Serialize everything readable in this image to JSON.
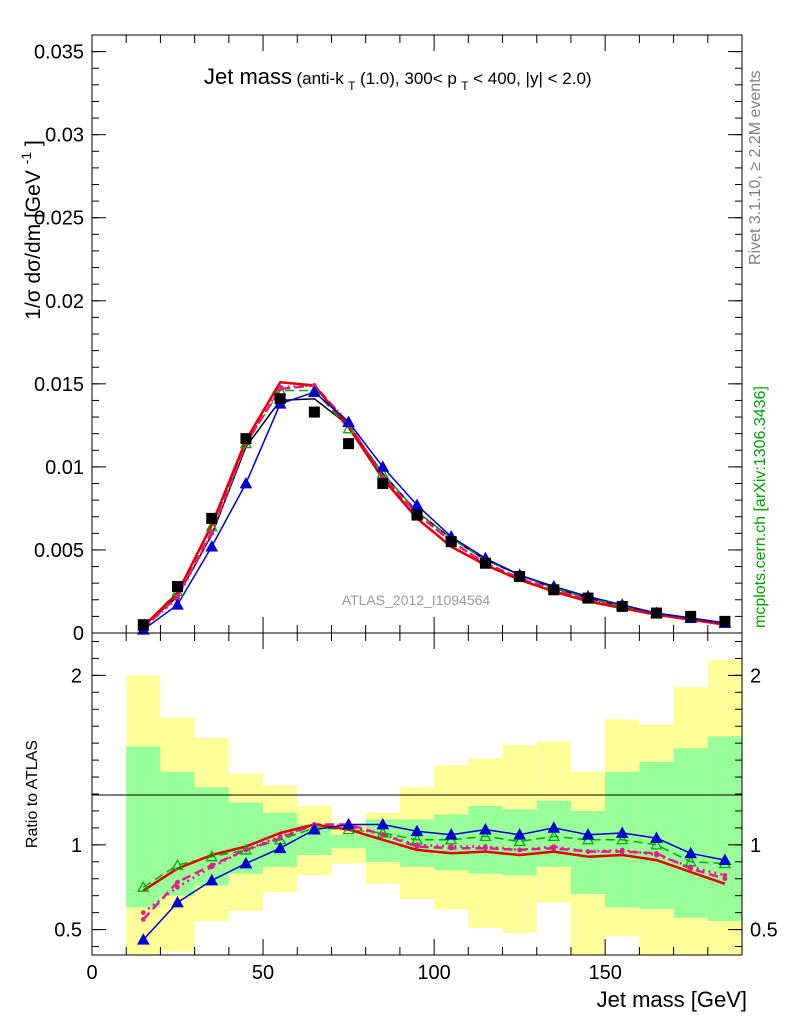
{
  "colors": {
    "data": "#000000",
    "series_black": "#000000",
    "series_red": "#e00000",
    "series_magenta": "#e0208a",
    "series_blue": "#0000d0",
    "series_green": "#00b000",
    "band_yellow": "#ffff99",
    "band_green": "#99ff99",
    "side_label_gray": "#808080",
    "side_label_green": "#00a000",
    "watermark": "#999999"
  },
  "text": {
    "title_main": "Jet mass",
    "title_detail": "(anti-k",
    "title_sub_T": "T",
    "title_detail_rest": "(1.0), 300< p",
    "title_sub_T2": "T",
    "title_detail_end": " < 400, |y| < 2.0)",
    "ylabel": "1/σ dσ/dm [GeV",
    "ylabel_sup": "-1",
    "ylabel_close": "]",
    "ratio_ylabel": "Ratio to ATLAS",
    "xlabel": "Jet mass [GeV]",
    "analysis_id": "ATLAS_2012_I1094564",
    "side_rivet": "Rivet 3.1.10, ≥ 2.2M events",
    "side_mcplots": "mcplots.cern.ch [arXiv:1306.3436]"
  },
  "chart_data": [
    {
      "type": "line",
      "title": "Jet mass (anti-kT(1.0), 300< pT < 400, |y| < 2.0)",
      "xlabel": "Jet mass [GeV]",
      "ylabel": "1/σ dσ/dm [GeV-1]",
      "xlim": [
        0,
        190
      ],
      "ylim": [
        0,
        0.036
      ],
      "y_ticks": [
        0,
        0.005,
        0.01,
        0.015,
        0.02,
        0.025,
        0.03,
        0.035
      ],
      "y_tick_labels": [
        "0",
        "0.005",
        "0.01",
        "0.015",
        "0.02",
        "0.025",
        "0.03",
        "0.035"
      ],
      "x": [
        15,
        25,
        35,
        45,
        55,
        65,
        75,
        85,
        95,
        105,
        115,
        125,
        135,
        145,
        155,
        165,
        175,
        185
      ],
      "data_points": {
        "marker": "square",
        "values": [
          0.0005,
          0.0028,
          0.0069,
          0.0117,
          0.0141,
          0.0133,
          0.0114,
          0.009,
          0.0071,
          0.0055,
          0.0042,
          0.0034,
          0.0026,
          0.0021,
          0.0016,
          0.0012,
          0.001,
          0.0007
        ]
      },
      "series": [
        {
          "color_key": "series_black",
          "style": "solid",
          "width": 1.5,
          "values": [
            0.0004,
            0.0022,
            0.0059,
            0.0112,
            0.014,
            0.0141,
            0.0125,
            0.0096,
            0.0073,
            0.0057,
            0.0044,
            0.0035,
            0.0027,
            0.0021,
            0.0016,
            0.0012,
            0.0009,
            0.0006
          ]
        },
        {
          "color_key": "series_green",
          "style": "dashed",
          "width": 1.5,
          "marker": "open-triangle",
          "values": [
            0.0004,
            0.0025,
            0.0064,
            0.0114,
            0.0146,
            0.0146,
            0.0123,
            0.0096,
            0.0073,
            0.0057,
            0.0044,
            0.0035,
            0.0027,
            0.0021,
            0.0016,
            0.0012,
            0.0009,
            0.0006
          ]
        },
        {
          "color_key": "series_magenta",
          "style": "dotted",
          "width": 2.5,
          "marker": "dot",
          "values": [
            0.0003,
            0.0021,
            0.006,
            0.0114,
            0.0148,
            0.0149,
            0.0126,
            0.0094,
            0.0072,
            0.0055,
            0.0042,
            0.0033,
            0.0026,
            0.002,
            0.0015,
            0.0011,
            0.0008,
            0.0006
          ]
        },
        {
          "color_key": "series_magenta",
          "style": "dashed",
          "width": 2.5,
          "marker": "dot",
          "values": [
            0.0003,
            0.0022,
            0.0061,
            0.0114,
            0.0147,
            0.0149,
            0.0126,
            0.0094,
            0.0072,
            0.0055,
            0.0042,
            0.0033,
            0.0026,
            0.002,
            0.0015,
            0.0011,
            0.0008,
            0.0006
          ]
        },
        {
          "color_key": "series_red",
          "style": "solid",
          "width": 2.5,
          "values": [
            0.0004,
            0.0024,
            0.0065,
            0.0116,
            0.0151,
            0.0149,
            0.0124,
            0.0093,
            0.0069,
            0.0052,
            0.0041,
            0.0032,
            0.0025,
            0.0019,
            0.0015,
            0.0011,
            0.0008,
            0.0005
          ]
        },
        {
          "color_key": "series_blue",
          "style": "solid",
          "width": 1.5,
          "marker": "filled-triangle",
          "values": [
            0.0002,
            0.0017,
            0.0052,
            0.009,
            0.0138,
            0.0145,
            0.0127,
            0.01,
            0.0077,
            0.0058,
            0.0045,
            0.0035,
            0.0028,
            0.0022,
            0.0017,
            0.0012,
            0.0009,
            0.0006
          ]
        }
      ]
    },
    {
      "type": "line",
      "ylabel": "Ratio to ATLAS",
      "xlabel": "Jet mass [GeV]",
      "xlim": [
        0,
        190
      ],
      "ylim": [
        0.35,
        2.25
      ],
      "x_ticks": [
        0,
        50,
        100,
        150
      ],
      "x_tick_labels": [
        "0",
        "50",
        "100",
        "150"
      ],
      "y_ticks": [
        0.5,
        1,
        2
      ],
      "y_tick_labels": [
        "0.5",
        "1",
        "2"
      ],
      "bin_edges": [
        10,
        20,
        30,
        40,
        50,
        60,
        70,
        80,
        90,
        100,
        110,
        120,
        130,
        140,
        150,
        160,
        170,
        180,
        190
      ],
      "band_yellow": {
        "low": [
          0.35,
          0.37,
          0.55,
          0.61,
          0.72,
          0.82,
          0.89,
          0.77,
          0.68,
          0.62,
          0.51,
          0.48,
          0.66,
          0.35,
          0.46,
          0.35,
          0.35,
          0.35
        ],
        "high": [
          2.0,
          1.75,
          1.63,
          1.42,
          1.35,
          1.23,
          1.13,
          1.19,
          1.34,
          1.47,
          1.51,
          1.59,
          1.61,
          1.43,
          1.74,
          1.71,
          1.93,
          2.09
        ]
      },
      "band_green": {
        "low": [
          0.63,
          0.7,
          0.76,
          0.83,
          0.87,
          0.94,
          0.98,
          0.9,
          0.87,
          0.85,
          0.83,
          0.82,
          0.87,
          0.71,
          0.63,
          0.62,
          0.57,
          0.55
        ],
        "high": [
          1.58,
          1.43,
          1.34,
          1.25,
          1.19,
          1.12,
          1.06,
          1.15,
          1.15,
          1.18,
          1.23,
          1.21,
          1.26,
          1.2,
          1.43,
          1.49,
          1.57,
          1.64
        ]
      },
      "x": [
        15,
        25,
        35,
        45,
        55,
        65,
        75,
        85,
        95,
        105,
        115,
        125,
        135,
        145,
        155,
        165,
        175,
        185
      ],
      "series": [
        {
          "color_key": "series_green",
          "style": "dashed",
          "width": 1.5,
          "marker": "open-triangle",
          "values": [
            0.75,
            0.88,
            0.93,
            0.97,
            1.03,
            1.1,
            1.09,
            1.07,
            1.03,
            1.03,
            1.05,
            1.02,
            1.05,
            1.03,
            1.03,
            1.0,
            0.9,
            0.89
          ]
        },
        {
          "color_key": "series_magenta",
          "style": "dotted",
          "width": 2.5,
          "marker": "dot",
          "values": [
            0.6,
            0.75,
            0.87,
            0.97,
            1.05,
            1.12,
            1.11,
            1.06,
            1.0,
            0.99,
            0.99,
            0.97,
            0.99,
            0.96,
            0.97,
            0.94,
            0.87,
            0.82
          ]
        },
        {
          "color_key": "series_magenta",
          "style": "dashed",
          "width": 2.5,
          "marker": "dot",
          "values": [
            0.56,
            0.78,
            0.88,
            0.97,
            1.04,
            1.12,
            1.12,
            1.06,
            0.99,
            0.98,
            0.98,
            0.97,
            0.98,
            0.96,
            0.96,
            0.95,
            0.86,
            0.8
          ]
        },
        {
          "color_key": "series_red",
          "style": "solid",
          "width": 2.5,
          "values": [
            0.73,
            0.86,
            0.94,
            0.99,
            1.07,
            1.12,
            1.09,
            1.03,
            0.97,
            0.95,
            0.96,
            0.94,
            0.96,
            0.93,
            0.94,
            0.91,
            0.84,
            0.77
          ]
        },
        {
          "color_key": "series_blue",
          "style": "solid",
          "width": 1.5,
          "marker": "filled-triangle",
          "values": [
            0.44,
            0.66,
            0.79,
            0.89,
            0.98,
            1.09,
            1.12,
            1.12,
            1.08,
            1.06,
            1.09,
            1.06,
            1.1,
            1.06,
            1.07,
            1.04,
            0.95,
            0.91
          ]
        }
      ]
    }
  ]
}
